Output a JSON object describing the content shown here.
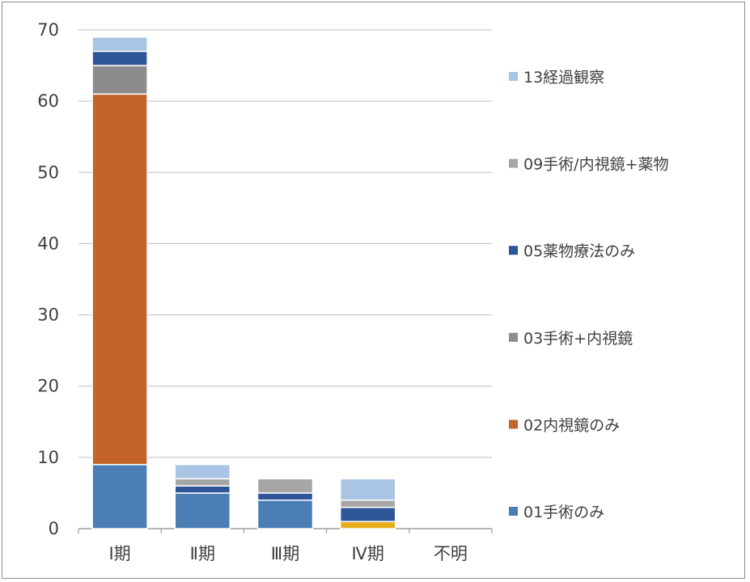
{
  "chart_data": {
    "type": "bar",
    "stacked": true,
    "title": "",
    "xlabel": "",
    "ylabel": "",
    "ylim": [
      0,
      70
    ],
    "yticks": [
      0,
      10,
      20,
      30,
      40,
      50,
      60,
      70
    ],
    "grid": true,
    "legend_position": "right",
    "categories": [
      "Ⅰ期",
      "Ⅱ期",
      "Ⅲ期",
      "Ⅳ期",
      "不明"
    ],
    "series": [
      {
        "name": "01手術のみ",
        "color": "#4a7eb5",
        "values": [
          9,
          5,
          4,
          0,
          0
        ]
      },
      {
        "name": "",
        "color": "#e6ad1a",
        "values": [
          0,
          0,
          0,
          1,
          0
        ]
      },
      {
        "name": "02内視鏡のみ",
        "color": "#c5642a",
        "values": [
          52,
          0,
          0,
          0,
          0
        ]
      },
      {
        "name": "03手術+内視鏡",
        "color": "#8c8c8c",
        "values": [
          4,
          0,
          0,
          0,
          0
        ]
      },
      {
        "name": "05薬物療法のみ",
        "color": "#2e5597",
        "values": [
          2,
          1,
          1,
          2,
          0
        ]
      },
      {
        "name": "09手術/内視鏡+薬物",
        "color": "#a6a6a6",
        "values": [
          0,
          1,
          2,
          1,
          0
        ]
      },
      {
        "name": "13経過観察",
        "color": "#a9c4e4",
        "values": [
          2,
          2,
          0,
          3,
          0
        ]
      }
    ],
    "legend_order": [
      "13経過観察",
      "09手術/内視鏡+薬物",
      "05薬物療法のみ",
      "03手術+内視鏡",
      "02内視鏡のみ",
      "01手術のみ"
    ]
  }
}
